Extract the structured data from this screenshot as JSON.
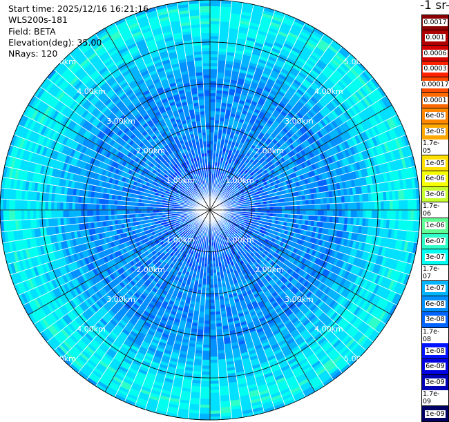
{
  "header": {
    "start_time": "Start time: 2025/12/16 16:21:16",
    "instrument": "WLS200s-181",
    "field": "Field: BETA",
    "elevation": "Elevation(deg): 35.00",
    "nrays": "NRays: 120"
  },
  "colorbar": {
    "unit_title": "-1 sr-",
    "levels": [
      {
        "label": "0.0017",
        "color": "#8b0000"
      },
      {
        "label": "0.001",
        "color": "#b00000"
      },
      {
        "label": "0.0006",
        "color": "#d40000"
      },
      {
        "label": "0.0003",
        "color": "#ff2000"
      },
      {
        "label": "0.00017",
        "color": "#ff4a00"
      },
      {
        "label": "0.0001",
        "color": "#ff6a00"
      },
      {
        "label": "6e-05",
        "color": "#ff8800"
      },
      {
        "label": "3e-05",
        "color": "#ffa800"
      },
      {
        "label": "1.7e-05",
        "color": "#ffc800"
      },
      {
        "label": "1e-05",
        "color": "#ffe000"
      },
      {
        "label": "6e-06",
        "color": "#f5ff00"
      },
      {
        "label": "3e-06",
        "color": "#c8ff2e"
      },
      {
        "label": "1.7e-06",
        "color": "#96ff60"
      },
      {
        "label": "1e-06",
        "color": "#60ff96"
      },
      {
        "label": "6e-07",
        "color": "#2effc8"
      },
      {
        "label": "3e-07",
        "color": "#00fff0"
      },
      {
        "label": "1.7e-07",
        "color": "#00e0ff"
      },
      {
        "label": "1e-07",
        "color": "#00b4ff"
      },
      {
        "label": "6e-08",
        "color": "#0090ff"
      },
      {
        "label": "3e-08",
        "color": "#0064ff"
      },
      {
        "label": "1.7e-08",
        "color": "#0038ff"
      },
      {
        "label": "1e-08",
        "color": "#0014ff"
      },
      {
        "label": "6e-09",
        "color": "#0000e0"
      },
      {
        "label": "3e-09",
        "color": "#0000b4"
      },
      {
        "label": "1.7e-09",
        "color": "#000090"
      },
      {
        "label": "1e-09",
        "color": "#000064"
      }
    ]
  },
  "chart_data": {
    "type": "heatmap",
    "projection": "polar",
    "field": "BETA",
    "nrays": 120,
    "max_range_km": 5.0,
    "range_rings_km": [
      1.0,
      2.0,
      3.0,
      4.0,
      5.0
    ],
    "ring_labels": [
      "1.00km",
      "2.00km",
      "3.00km",
      "4.00km",
      "5.00km"
    ],
    "ring_label_directions": [
      "NE",
      "NW",
      "SE",
      "SW"
    ],
    "grid": true,
    "value_profile_by_range": [
      {
        "range_km": 0.0,
        "value": "3e-08"
      },
      {
        "range_km": 1.0,
        "value": "3e-08"
      },
      {
        "range_km": 2.0,
        "value": "6e-08"
      },
      {
        "range_km": 3.0,
        "value": "6e-08"
      },
      {
        "range_km": 4.0,
        "value": "1.7e-07"
      },
      {
        "range_km": 4.8,
        "value": "3e-07"
      },
      {
        "range_km": 5.0,
        "value": "1e-07"
      }
    ]
  }
}
